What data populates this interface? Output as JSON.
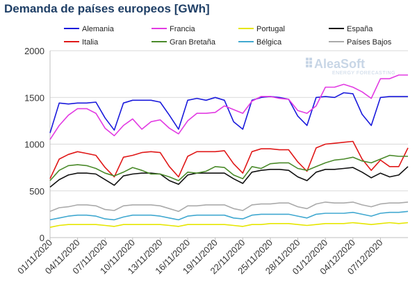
{
  "title": "Demanda de países europeos [GWh]",
  "watermark": {
    "brand": "AleaSoft",
    "tagline": "ENERGY FORECASTING"
  },
  "chart_data": {
    "type": "line",
    "title": "Demanda de países europeos [GWh]",
    "ylim": [
      0,
      2000
    ],
    "yticks": [
      "0",
      "500",
      "1000",
      "1500",
      "2000"
    ],
    "xtick_labels": [
      "01/11/2020",
      "04/11/2020",
      "07/11/2020",
      "10/11/2020",
      "13/11/2020",
      "16/11/2020",
      "19/11/2020",
      "22/11/2020",
      "25/11/2020",
      "28/11/2020",
      "01/12/2020",
      "04/12/2020",
      "07/12/2020"
    ],
    "x": [
      "01/11",
      "02/11",
      "03/11",
      "04/11",
      "05/11",
      "06/11",
      "07/11",
      "08/11",
      "09/11",
      "10/11",
      "11/11",
      "12/11",
      "13/11",
      "14/11",
      "15/11",
      "16/11",
      "17/11",
      "18/11",
      "19/11",
      "20/11",
      "21/11",
      "22/11",
      "23/11",
      "24/11",
      "25/11",
      "26/11",
      "27/11",
      "28/11",
      "29/11",
      "30/11",
      "01/12",
      "02/12",
      "03/12",
      "04/12",
      "05/12",
      "06/12",
      "07/12",
      "08/12",
      "09/12",
      "10/12"
    ],
    "grid": true,
    "legend_position": "top",
    "series": [
      {
        "name": "Alemania",
        "color": "#1a1adc",
        "values": [
          1120,
          1440,
          1430,
          1440,
          1440,
          1450,
          1280,
          1150,
          1440,
          1470,
          1470,
          1470,
          1450,
          1310,
          1160,
          1470,
          1490,
          1470,
          1500,
          1470,
          1240,
          1160,
          1470,
          1500,
          1510,
          1500,
          1480,
          1300,
          1200,
          1500,
          1510,
          1500,
          1550,
          1540,
          1320,
          1200,
          1500,
          1510,
          1510,
          1510
        ]
      },
      {
        "name": "Francia",
        "color": "#e23ae2",
        "values": [
          1050,
          1200,
          1310,
          1380,
          1380,
          1330,
          1170,
          1090,
          1200,
          1270,
          1160,
          1240,
          1260,
          1170,
          1110,
          1250,
          1330,
          1330,
          1340,
          1410,
          1370,
          1330,
          1460,
          1510,
          1510,
          1490,
          1480,
          1360,
          1330,
          1410,
          1610,
          1610,
          1640,
          1610,
          1560,
          1490,
          1700,
          1700,
          1740,
          1740
        ]
      },
      {
        "name": "Portugal",
        "color": "#e6e600",
        "values": [
          110,
          130,
          140,
          140,
          140,
          140,
          130,
          120,
          140,
          140,
          140,
          140,
          140,
          130,
          120,
          140,
          140,
          140,
          140,
          140,
          130,
          120,
          140,
          140,
          150,
          150,
          150,
          140,
          130,
          140,
          150,
          150,
          150,
          160,
          150,
          140,
          150,
          160,
          150,
          160
        ]
      },
      {
        "name": "España",
        "color": "#111111",
        "values": [
          540,
          620,
          670,
          690,
          690,
          680,
          620,
          560,
          660,
          680,
          690,
          690,
          680,
          610,
          570,
          670,
          690,
          690,
          690,
          690,
          630,
          580,
          700,
          720,
          730,
          730,
          720,
          650,
          610,
          700,
          730,
          730,
          740,
          750,
          700,
          640,
          690,
          650,
          670,
          760
        ]
      },
      {
        "name": "Italia",
        "color": "#e01818",
        "values": [
          630,
          840,
          890,
          920,
          900,
          880,
          750,
          650,
          860,
          880,
          910,
          920,
          910,
          760,
          650,
          870,
          920,
          920,
          920,
          930,
          790,
          690,
          920,
          950,
          950,
          940,
          940,
          810,
          710,
          960,
          1000,
          1010,
          1020,
          1030,
          840,
          720,
          830,
          760,
          760,
          960
        ]
      },
      {
        "name": "Gran Bretaña",
        "color": "#4a8a2a",
        "values": [
          610,
          720,
          770,
          780,
          770,
          740,
          690,
          660,
          700,
          750,
          720,
          680,
          680,
          650,
          610,
          700,
          690,
          710,
          760,
          750,
          670,
          630,
          760,
          740,
          790,
          800,
          800,
          740,
          720,
          760,
          800,
          830,
          840,
          860,
          820,
          800,
          840,
          880,
          870,
          870
        ]
      },
      {
        "name": "Bélgica",
        "color": "#40a8d0",
        "values": [
          190,
          210,
          230,
          240,
          240,
          230,
          200,
          190,
          220,
          240,
          240,
          240,
          230,
          210,
          190,
          230,
          240,
          240,
          240,
          240,
          210,
          200,
          240,
          250,
          250,
          250,
          250,
          230,
          210,
          250,
          260,
          260,
          260,
          270,
          250,
          230,
          260,
          270,
          270,
          280
        ]
      },
      {
        "name": "Países Bajos",
        "color": "#aaaaaa",
        "values": [
          280,
          320,
          330,
          350,
          350,
          340,
          300,
          290,
          340,
          350,
          350,
          350,
          340,
          310,
          280,
          340,
          340,
          350,
          350,
          350,
          310,
          290,
          350,
          360,
          360,
          370,
          370,
          330,
          310,
          360,
          380,
          370,
          370,
          380,
          350,
          330,
          360,
          370,
          370,
          380
        ]
      }
    ]
  }
}
